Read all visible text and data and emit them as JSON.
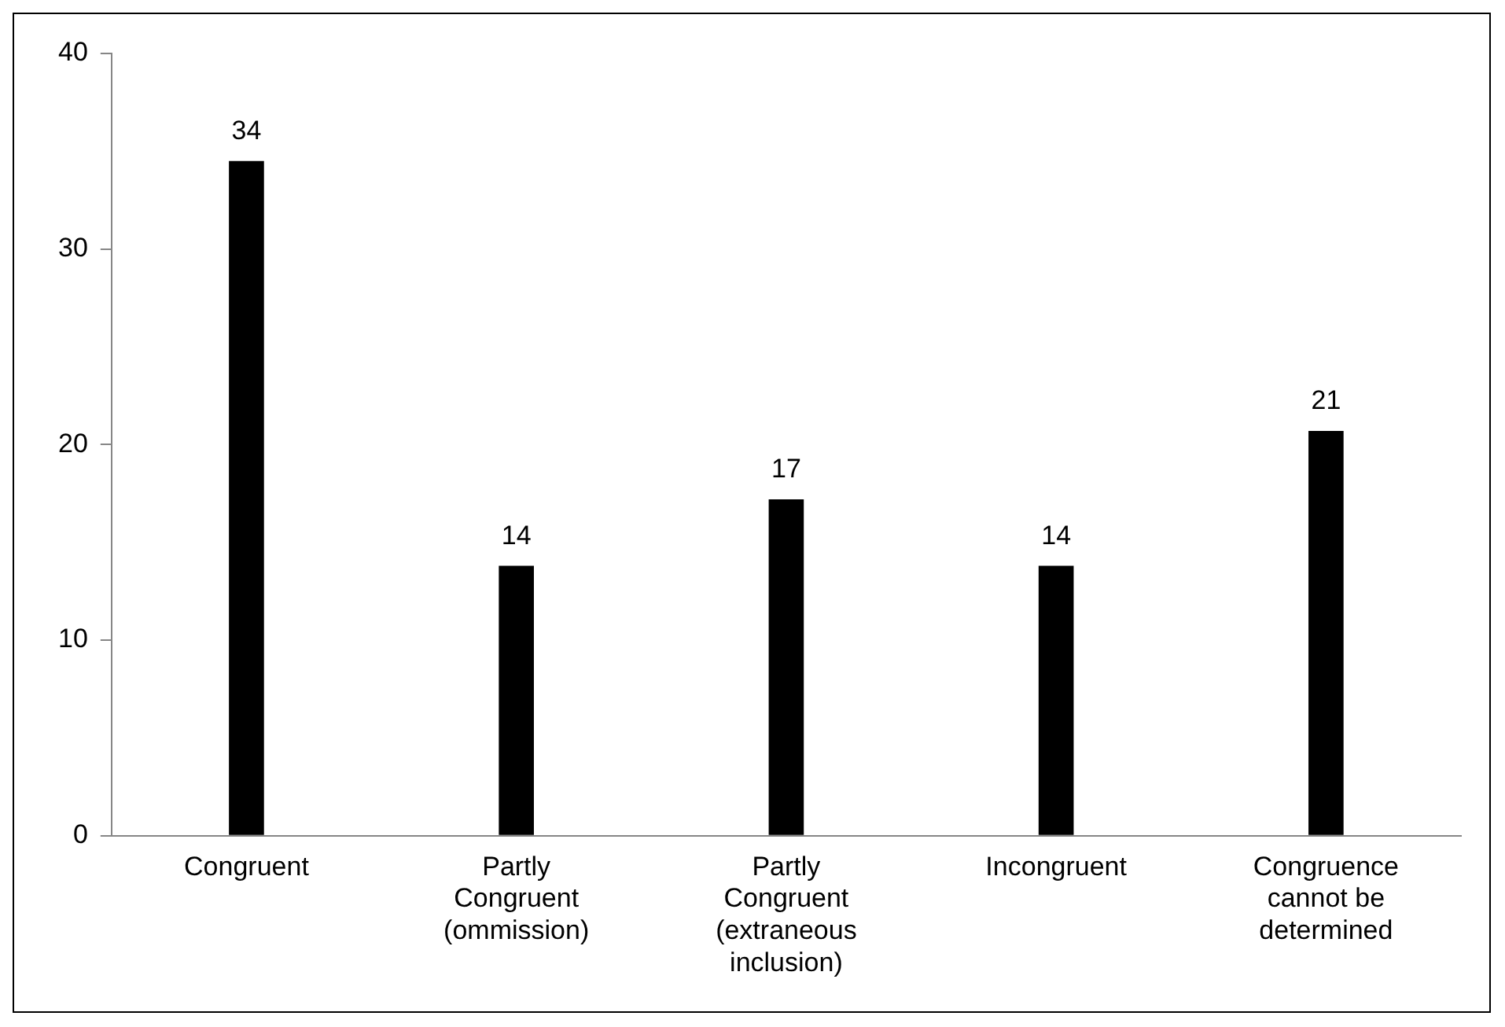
{
  "chart_data": {
    "type": "bar",
    "categories": [
      "Congruent",
      "Partly Congruent (ommission)",
      "Partly Congruent (extraneous inclusion)",
      "Incongruent",
      "Congruence cannot be determined"
    ],
    "values": [
      34.5,
      13.8,
      17.2,
      13.8,
      20.7
    ],
    "value_labels": [
      "34",
      "14",
      "17",
      "14",
      "21"
    ],
    "color": "#000000",
    "ylim": [
      0,
      40
    ],
    "yticks": [
      0,
      10,
      20,
      30,
      40
    ],
    "grid": false,
    "legend": false
  }
}
